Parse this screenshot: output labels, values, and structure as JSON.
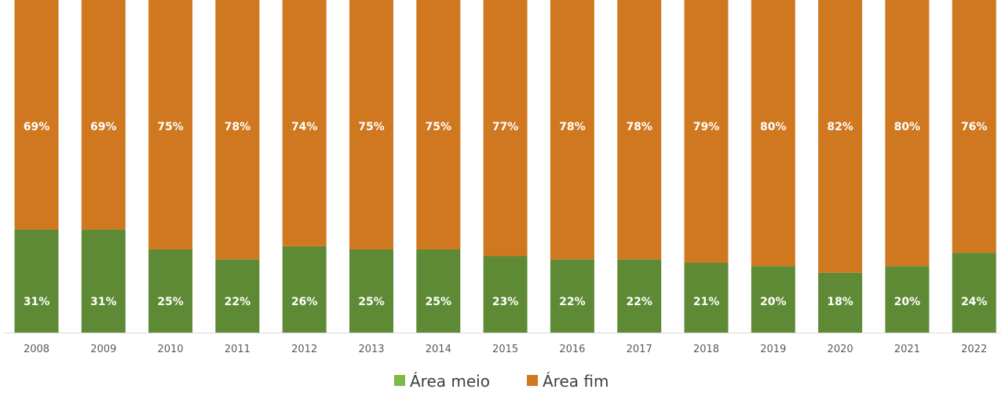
{
  "chart_data": {
    "type": "bar",
    "stacked": true,
    "percent": true,
    "categories": [
      "2008",
      "2009",
      "2010",
      "2011",
      "2012",
      "2013",
      "2014",
      "2015",
      "2016",
      "2017",
      "2018",
      "2019",
      "2020",
      "2021",
      "2022"
    ],
    "series": [
      {
        "name": "Área meio",
        "color": "#5e8a35",
        "values": [
          31,
          31,
          25,
          22,
          26,
          25,
          25,
          23,
          22,
          22,
          21,
          20,
          18,
          20,
          24
        ],
        "labels": [
          "31%",
          "31%",
          "25%",
          "22%",
          "26%",
          "25%",
          "25%",
          "23%",
          "22%",
          "22%",
          "21%",
          "20%",
          "18%",
          "20%",
          "24%"
        ]
      },
      {
        "name": "Área fim",
        "color": "#cf7820",
        "values": [
          69,
          69,
          75,
          78,
          74,
          75,
          75,
          77,
          78,
          78,
          79,
          80,
          82,
          80,
          76
        ],
        "labels": [
          "69%",
          "69%",
          "75%",
          "78%",
          "74%",
          "75%",
          "75%",
          "77%",
          "78%",
          "78%",
          "79%",
          "80%",
          "82%",
          "80%",
          "76%"
        ]
      }
    ],
    "ylim": [
      0,
      100
    ],
    "grid": false,
    "legend_position": "bottom",
    "legend_marker_colors": [
      "#7cba43",
      "#cf7820"
    ]
  }
}
